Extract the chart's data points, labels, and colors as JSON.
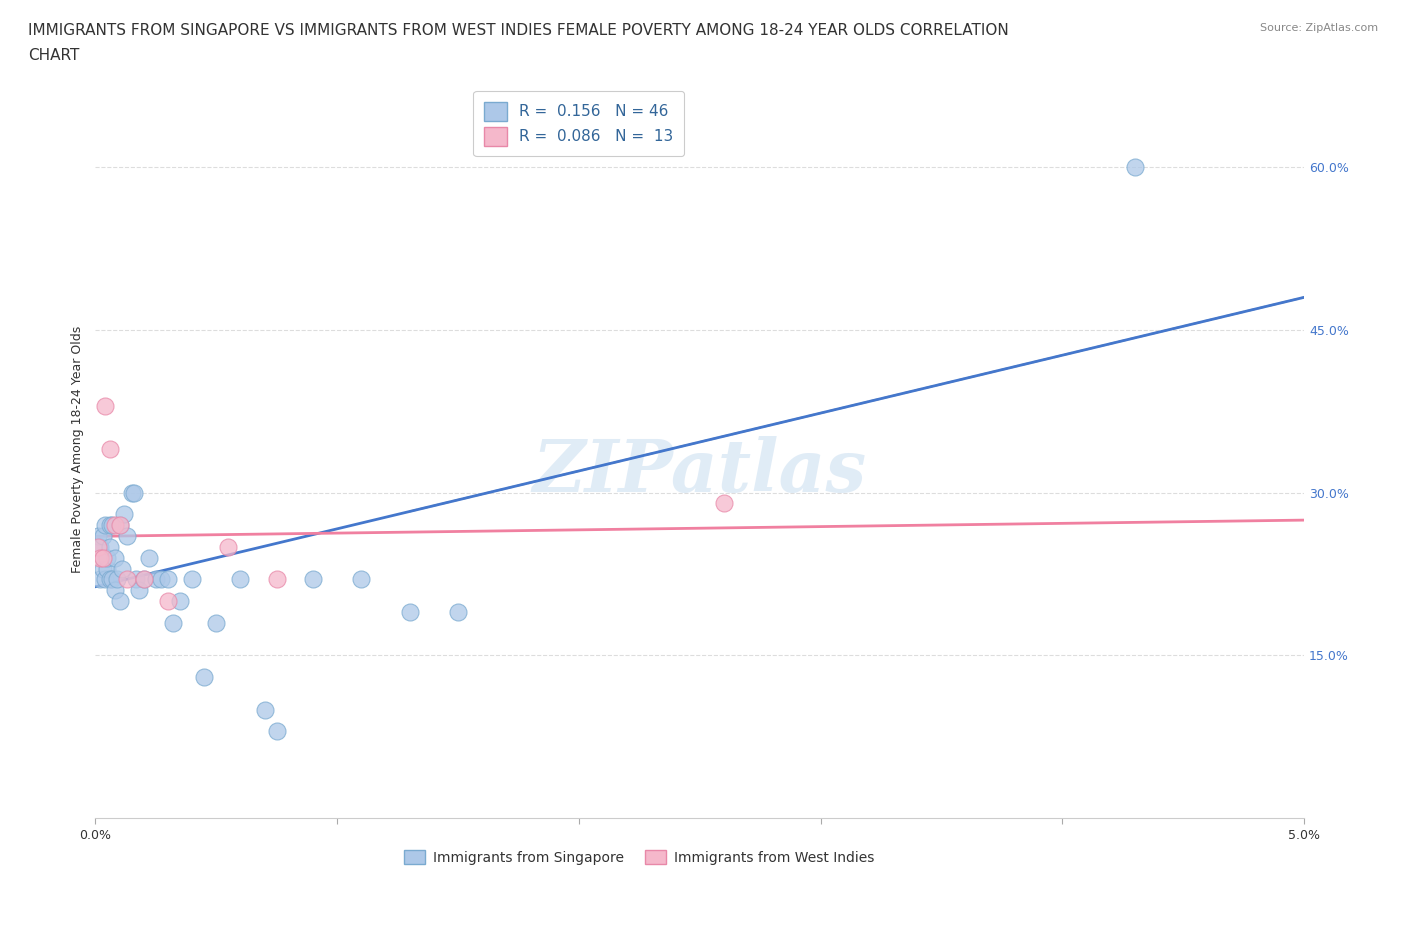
{
  "title_line1": "IMMIGRANTS FROM SINGAPORE VS IMMIGRANTS FROM WEST INDIES FEMALE POVERTY AMONG 18-24 YEAR OLDS CORRELATION",
  "title_line2": "CHART",
  "source_text": "Source: ZipAtlas.com",
  "ylabel": "Female Poverty Among 18-24 Year Olds",
  "watermark": "ZIPatlas",
  "xlim": [
    0.0,
    0.05
  ],
  "ylim": [
    0.0,
    0.68
  ],
  "xtick_vals": [
    0.0,
    0.01,
    0.02,
    0.03,
    0.04,
    0.05
  ],
  "xtick_labels_bottom": [
    "0.0%",
    "",
    "",
    "",
    "",
    "5.0%"
  ],
  "ytick_vals": [
    0.15,
    0.3,
    0.45,
    0.6
  ],
  "ytick_labels": [
    "15.0%",
    "30.0%",
    "45.0%",
    "60.0%"
  ],
  "singapore_color": "#adc8e8",
  "singapore_edge_color": "#7aaad0",
  "west_indies_color": "#f5b8cb",
  "west_indies_edge_color": "#e888a8",
  "singapore_line_color": "#4477cc",
  "west_indies_line_color": "#f080a0",
  "dashed_line_color": "#aaaaaa",
  "legend_R_singapore": "0.156",
  "legend_N_singapore": "46",
  "legend_R_west_indies": "0.086",
  "legend_N_west_indies": "13",
  "singapore_x": [
    0.0001,
    0.0001,
    0.0002,
    0.0002,
    0.0003,
    0.0003,
    0.0003,
    0.0004,
    0.0004,
    0.0005,
    0.0005,
    0.0006,
    0.0006,
    0.0006,
    0.0007,
    0.0007,
    0.0008,
    0.0008,
    0.0009,
    0.001,
    0.001,
    0.0011,
    0.0012,
    0.0013,
    0.0015,
    0.0016,
    0.0017,
    0.0018,
    0.002,
    0.0022,
    0.0025,
    0.0027,
    0.003,
    0.0032,
    0.0035,
    0.004,
    0.0045,
    0.005,
    0.006,
    0.007,
    0.0075,
    0.009,
    0.011,
    0.013,
    0.015,
    0.043
  ],
  "singapore_y": [
    0.25,
    0.26,
    0.22,
    0.25,
    0.23,
    0.24,
    0.26,
    0.22,
    0.27,
    0.23,
    0.24,
    0.22,
    0.25,
    0.27,
    0.22,
    0.27,
    0.21,
    0.24,
    0.22,
    0.2,
    0.27,
    0.23,
    0.28,
    0.26,
    0.3,
    0.3,
    0.22,
    0.21,
    0.22,
    0.24,
    0.22,
    0.22,
    0.22,
    0.18,
    0.2,
    0.22,
    0.13,
    0.18,
    0.22,
    0.1,
    0.08,
    0.22,
    0.22,
    0.19,
    0.19,
    0.6
  ],
  "west_indies_x": [
    0.0001,
    0.0002,
    0.0003,
    0.0004,
    0.0006,
    0.0008,
    0.001,
    0.0013,
    0.002,
    0.003,
    0.0055,
    0.0075,
    0.026
  ],
  "west_indies_y": [
    0.25,
    0.24,
    0.24,
    0.38,
    0.34,
    0.27,
    0.27,
    0.22,
    0.22,
    0.2,
    0.25,
    0.22,
    0.29
  ],
  "background_color": "#ffffff",
  "grid_color": "#dddddd",
  "title_fontsize": 11,
  "tick_fontsize": 9,
  "legend_fontsize": 11,
  "legend_series_fontsize": 10
}
